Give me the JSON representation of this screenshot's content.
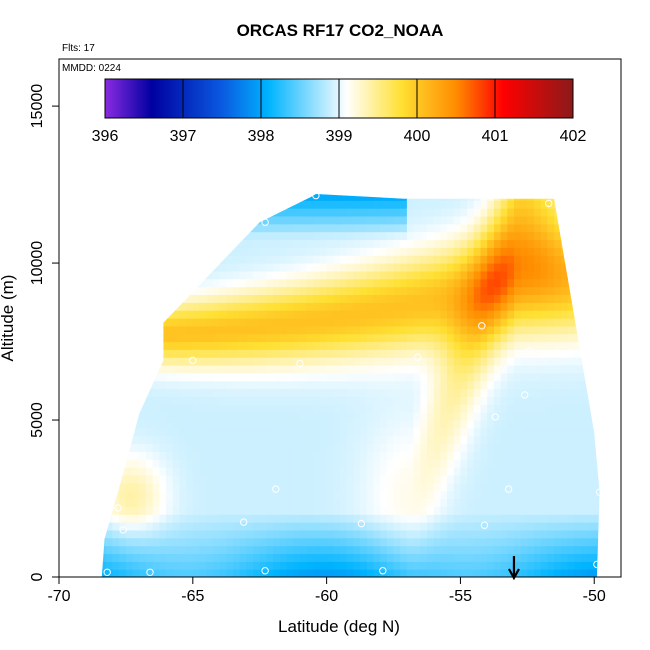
{
  "chart_data": {
    "type": "heatmap",
    "title": "ORCAS RF17 CO2_NOAA",
    "flights_label": "Flts: 17",
    "date_label": "MMDD: 0224",
    "xlabel": "Latitude (deg N)",
    "ylabel": "Altitude (m)",
    "xlim": [
      -70,
      -49
    ],
    "ylim": [
      0,
      16500
    ],
    "x_ticks": [
      -70,
      -65,
      -60,
      -55,
      -50
    ],
    "x_tick_labels": [
      "-70",
      "-65",
      "-60",
      "-55",
      "-50"
    ],
    "y_ticks": [
      0,
      5000,
      10000,
      15000
    ],
    "y_tick_labels": [
      "0",
      "5000",
      "10000",
      "15000"
    ],
    "colorbar": {
      "min": 396,
      "max": 402,
      "tick_values": [
        396,
        397,
        398,
        399,
        400,
        401,
        402
      ],
      "tick_labels": [
        "396",
        "397",
        "398",
        "399",
        "400",
        "401",
        "402"
      ],
      "colors": [
        "#8a2be2",
        "#0000a0",
        "#0a5ae0",
        "#00b4ff",
        "#ffffff",
        "#ffe033",
        "#ff8c00",
        "#ff0000",
        "#8b1a1a"
      ],
      "color_positions": [
        396,
        396.6,
        397.5,
        398.1,
        399.1,
        399.8,
        400.5,
        401.1,
        402
      ]
    },
    "domain_outline": {
      "latitudes": [
        -68.4,
        -68.3,
        -67.6,
        -67.0,
        -66.1,
        -66.1,
        -64.3,
        -62.5,
        -60.6,
        -60.4,
        -57.1,
        -51.5,
        -50.0,
        -49.8,
        -49.9
      ],
      "altitudes": [
        0,
        1200,
        3300,
        5200,
        6900,
        8100,
        9700,
        11300,
        12100,
        12200,
        12050,
        12050,
        4600,
        2700,
        0
      ]
    },
    "field_model": {
      "background_ppm": 398.9,
      "upper_band": {
        "center_alt_m": 7700,
        "width_m": 850,
        "amplitude_ppm": 1.15
      },
      "ridge": {
        "end_lat": -52.8,
        "end_alt_m": 11800,
        "amplitude_ppm": 0.9
      },
      "boundary_layer": {
        "depth_m": 2100,
        "amplitude_ppm": -1.0
      },
      "southern_plume": {
        "center_lat": -67.3,
        "center_alt_m": 2600,
        "amplitude_ppm": 0.5
      }
    },
    "profile_points": [
      {
        "lat": -68.2,
        "alt": 150
      },
      {
        "lat": -67.8,
        "alt": 2200
      },
      {
        "lat": -67.6,
        "alt": 1500
      },
      {
        "lat": -66.6,
        "alt": 150
      },
      {
        "lat": -65.0,
        "alt": 6900
      },
      {
        "lat": -63.1,
        "alt": 1750
      },
      {
        "lat": -62.3,
        "alt": 11300
      },
      {
        "lat": -62.3,
        "alt": 200
      },
      {
        "lat": -61.9,
        "alt": 2800
      },
      {
        "lat": -61.0,
        "alt": 6800
      },
      {
        "lat": -60.4,
        "alt": 12150
      },
      {
        "lat": -58.7,
        "alt": 1700
      },
      {
        "lat": -57.9,
        "alt": 200
      },
      {
        "lat": -56.6,
        "alt": 7000
      },
      {
        "lat": -54.2,
        "alt": 8000
      },
      {
        "lat": -54.1,
        "alt": 1650
      },
      {
        "lat": -53.7,
        "alt": 5100
      },
      {
        "lat": -53.2,
        "alt": 2800
      },
      {
        "lat": -52.6,
        "alt": 5800
      },
      {
        "lat": -52.4,
        "alt": 7200
      },
      {
        "lat": -51.7,
        "alt": 11900
      },
      {
        "lat": -49.9,
        "alt": 400
      },
      {
        "lat": -49.8,
        "alt": 2700
      }
    ],
    "arrow_marker": {
      "lat": -53.0,
      "label": "aircraft position"
    }
  }
}
